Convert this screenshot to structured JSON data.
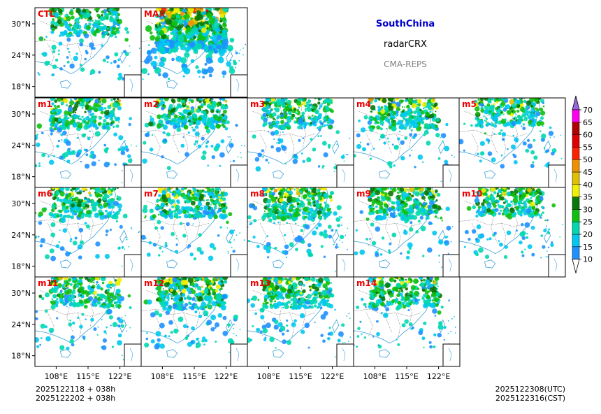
{
  "header": {
    "region": "SouthChina",
    "variable": "radarCRX",
    "system": "CMA-REPS"
  },
  "panels": [
    {
      "label": "CTL",
      "intensity": 0.35
    },
    {
      "label": "MAX",
      "intensity": 1.0
    },
    {
      "label": "m1",
      "intensity": 0.45
    },
    {
      "label": "m2",
      "intensity": 0.4
    },
    {
      "label": "m3",
      "intensity": 0.4
    },
    {
      "label": "m4",
      "intensity": 0.45
    },
    {
      "label": "m5",
      "intensity": 0.35
    },
    {
      "label": "m6",
      "intensity": 0.4
    },
    {
      "label": "m7",
      "intensity": 0.4
    },
    {
      "label": "m8",
      "intensity": 0.5
    },
    {
      "label": "m9",
      "intensity": 0.45
    },
    {
      "label": "m10",
      "intensity": 0.4
    },
    {
      "label": "m11",
      "intensity": 0.4
    },
    {
      "label": "m12",
      "intensity": 0.5
    },
    {
      "label": "m13",
      "intensity": 0.45
    },
    {
      "label": "m14",
      "intensity": 0.4
    }
  ],
  "axes": {
    "lat_ticks": [
      "30°N",
      "24°N",
      "18°N"
    ],
    "lon_ticks": [
      "108°E",
      "115°E",
      "122°E"
    ]
  },
  "colorbar": {
    "levels": [
      "10",
      "15",
      "20",
      "25",
      "30",
      "35",
      "40",
      "45",
      "50",
      "55",
      "60",
      "65",
      "70"
    ],
    "colors": [
      "#1e90ff",
      "#00c8f0",
      "#00d8b0",
      "#10c010",
      "#087808",
      "#f0f000",
      "#e0c000",
      "#f09000",
      "#ff2000",
      "#e00000",
      "#b00000",
      "#ff00f0",
      "#9000b0"
    ],
    "over_color": "#9966dd"
  },
  "footer": {
    "init_utc": "2025122118  +  038h",
    "init_cst": "2025122202  +  038h",
    "valid_utc": "2025122308(UTC)",
    "valid_cst": "2025122316(CST)"
  }
}
